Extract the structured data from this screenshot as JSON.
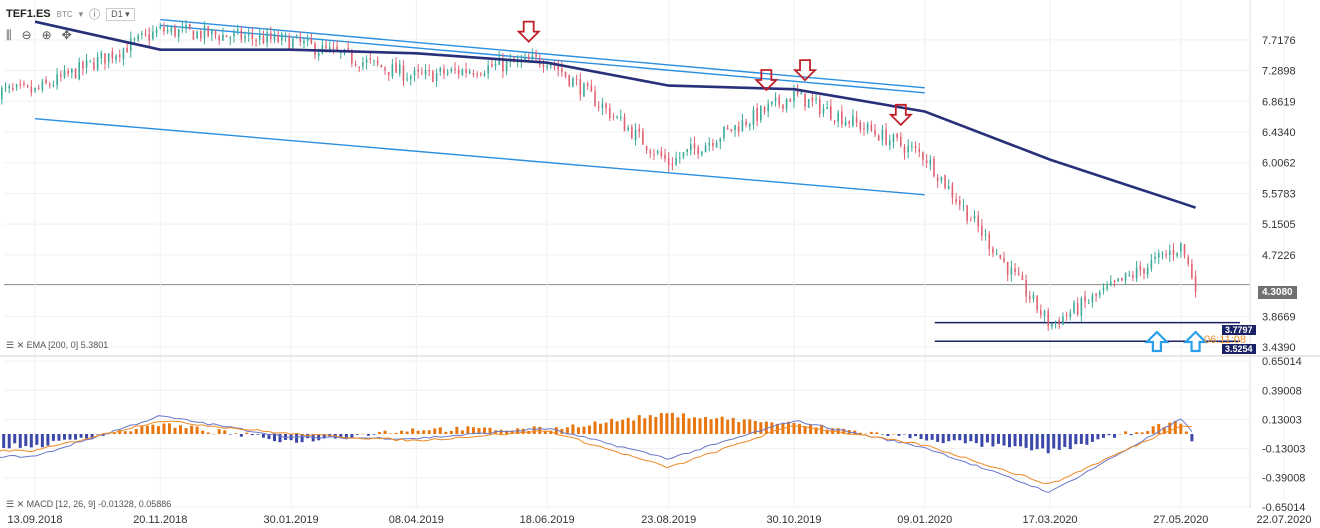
{
  "header": {
    "ticker": "TEF1.ES",
    "exchange": "BTC",
    "period": "D1"
  },
  "indicators": {
    "ema_label": "EMA [200, 0] 5.3801",
    "macd_label": "MACD [12, 26, 9] -0.01328, 0.05886"
  },
  "price_tags": {
    "last": "4.3080",
    "level_upper": "3.7797",
    "level_lower": "3.5254",
    "partial_label": "06:11:08"
  },
  "chart_data": {
    "type": "candlestick",
    "x_tick_labels": [
      "13.09.2018",
      "20.11.2018",
      "30.01.2019",
      "08.04.2019",
      "18.06.2019",
      "23.08.2019",
      "30.10.2019",
      "09.01.2020",
      "17.03.2020",
      "27.05.2020",
      "22.07.2020"
    ],
    "price_axis_ticks": [
      "7.7176",
      "7.2898",
      "6.8619",
      "6.4340",
      "6.0062",
      "5.5783",
      "5.1505",
      "4.7226",
      "4.3080",
      "3.8669",
      "3.4390"
    ],
    "price_range": [
      3.37,
      8.05
    ],
    "macd_axis_ticks": [
      "0.65014",
      "0.39008",
      "0.13003",
      "-0.13003",
      "-0.39008",
      "-0.65014"
    ],
    "macd_range": [
      -0.66,
      0.66
    ],
    "colors": {
      "up": "#3aaa9a",
      "down": "#e06070",
      "ema": "#28307a",
      "trendline": "#2a8fe0",
      "macd_hist_pos": "#e8760f",
      "macd_hist_neg": "#3c48a8",
      "macd_line": "#6a78c8",
      "signal_line": "#f08a24",
      "sell_arrow": "#c0202a",
      "buy_arrow": "#2a9ee8",
      "marker": "#f2a44c"
    },
    "close_anchors": [
      {
        "date": "13.09.2018",
        "close": 7.0
      },
      {
        "date": "20.11.2018",
        "close": 7.85
      },
      {
        "date": "30.01.2019",
        "close": 7.7
      },
      {
        "date": "08.04.2019",
        "close": 7.2
      },
      {
        "date": "18.06.2019",
        "close": 7.45
      },
      {
        "date": "23.08.2019",
        "close": 6.0
      },
      {
        "date": "30.10.2019",
        "close": 6.95
      },
      {
        "date": "09.01.2020",
        "close": 6.1
      },
      {
        "date": "17.03.2020",
        "close": 3.75
      },
      {
        "date": "27.05.2020",
        "close": 4.85
      },
      {
        "date": "04.06.2020",
        "close": 4.31
      }
    ],
    "ema_200": [
      {
        "date": "13.09.2018",
        "value": 7.97
      },
      {
        "date": "20.11.2018",
        "value": 7.58
      },
      {
        "date": "30.01.2019",
        "value": 7.58
      },
      {
        "date": "08.04.2019",
        "value": 7.53
      },
      {
        "date": "18.06.2019",
        "value": 7.4
      },
      {
        "date": "23.08.2019",
        "value": 7.08
      },
      {
        "date": "30.10.2019",
        "value": 7.03
      },
      {
        "date": "09.01.2020",
        "value": 6.72
      },
      {
        "date": "17.03.2020",
        "value": 6.05
      },
      {
        "date": "27.05.2020",
        "value": 5.45
      },
      {
        "date": "04.06.2020",
        "value": 5.38
      }
    ],
    "trend_lines": [
      {
        "from": {
          "date": "20.11.2018",
          "price": 8.0
        },
        "to": {
          "date": "09.01.2020",
          "price": 7.05
        }
      },
      {
        "from": {
          "date": "20.11.2018",
          "price": 7.92
        },
        "to": {
          "date": "09.01.2020",
          "price": 6.98
        }
      },
      {
        "from": {
          "date": "13.09.2018",
          "price": 6.62
        },
        "to": {
          "date": "09.01.2020",
          "price": 5.56
        }
      },
      {
        "from": {
          "date": "09.01.2020",
          "price": 3.78
        },
        "to": {
          "date": "22.07.2020",
          "price": 3.78
        }
      },
      {
        "from": {
          "date": "09.01.2020",
          "price": 3.52
        },
        "to": {
          "date": "22.07.2020",
          "price": 3.52
        }
      }
    ],
    "sell_signals": [
      "08.06.2019",
      "15.10.2019",
      "05.11.2019",
      "27.12.2019"
    ],
    "buy_signals": [
      "14.05.2020",
      "04.06.2020"
    ],
    "macd_anchors": [
      {
        "date": "13.09.2018",
        "macd": -0.2,
        "signal": -0.15
      },
      {
        "date": "20.11.2018",
        "macd": 0.16,
        "signal": 0.12
      },
      {
        "date": "30.01.2019",
        "macd": -0.03,
        "signal": 0.0
      },
      {
        "date": "08.04.2019",
        "macd": -0.04,
        "signal": -0.06
      },
      {
        "date": "18.06.2019",
        "macd": 0.05,
        "signal": 0.03
      },
      {
        "date": "23.08.2019",
        "macd": -0.22,
        "signal": -0.3
      },
      {
        "date": "30.10.2019",
        "macd": 0.12,
        "signal": 0.08
      },
      {
        "date": "09.01.2020",
        "macd": -0.12,
        "signal": -0.1
      },
      {
        "date": "17.03.2020",
        "macd": -0.52,
        "signal": -0.45
      },
      {
        "date": "27.05.2020",
        "macd": 0.13,
        "signal": 0.08
      },
      {
        "date": "04.06.2020",
        "macd": -0.01,
        "signal": 0.06
      }
    ]
  }
}
